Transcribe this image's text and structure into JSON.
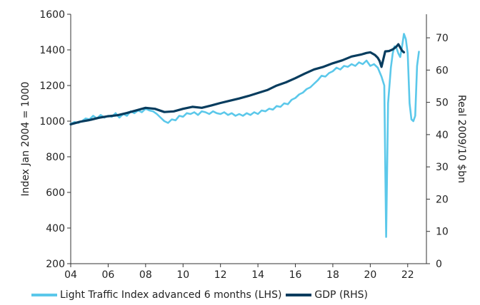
{
  "chart_data": {
    "type": "line",
    "title": "",
    "x_ticks": [
      "04",
      "06",
      "08",
      "10",
      "12",
      "14",
      "16",
      "18",
      "20",
      "22"
    ],
    "x_tick_years": [
      2004,
      2006,
      2008,
      2010,
      2012,
      2014,
      2016,
      2018,
      2020,
      2022
    ],
    "xlim": [
      2004,
      2023
    ],
    "y_left": {
      "label": "Index Jan 2004 = 1000",
      "ticks": [
        200,
        400,
        600,
        800,
        1000,
        1200,
        1400,
        1600
      ],
      "ylim": [
        200,
        1600
      ]
    },
    "y_right": {
      "label": "Real 2009/10 $bn",
      "ticks": [
        0,
        10,
        20,
        30,
        40,
        50,
        60,
        70
      ],
      "ylim": [
        0,
        77.3
      ]
    },
    "legend_position": "bottom",
    "grid": false,
    "series": [
      {
        "name": "Light Traffic Index advanced 6 months (LHS)",
        "axis": "left",
        "color": "#5bc8ea",
        "x": [
          2004.0,
          2004.2,
          2004.4,
          2004.6,
          2004.8,
          2005.0,
          2005.2,
          2005.4,
          2005.6,
          2005.8,
          2006.0,
          2006.2,
          2006.4,
          2006.6,
          2006.8,
          2007.0,
          2007.2,
          2007.4,
          2007.6,
          2007.8,
          2008.0,
          2008.2,
          2008.4,
          2008.6,
          2008.8,
          2009.0,
          2009.2,
          2009.4,
          2009.6,
          2009.8,
          2010.0,
          2010.2,
          2010.4,
          2010.6,
          2010.8,
          2011.0,
          2011.2,
          2011.4,
          2011.6,
          2011.8,
          2012.0,
          2012.2,
          2012.4,
          2012.6,
          2012.8,
          2013.0,
          2013.2,
          2013.4,
          2013.6,
          2013.8,
          2014.0,
          2014.2,
          2014.4,
          2014.6,
          2014.8,
          2015.0,
          2015.2,
          2015.4,
          2015.6,
          2015.8,
          2016.0,
          2016.2,
          2016.4,
          2016.6,
          2016.8,
          2017.0,
          2017.2,
          2017.4,
          2017.6,
          2017.8,
          2018.0,
          2018.2,
          2018.4,
          2018.6,
          2018.8,
          2019.0,
          2019.2,
          2019.4,
          2019.6,
          2019.8,
          2020.0,
          2020.2,
          2020.4,
          2020.6,
          2020.75,
          2020.85,
          2020.95,
          2021.1,
          2021.2,
          2021.3,
          2021.4,
          2021.5,
          2021.6,
          2021.7,
          2021.8,
          2021.9,
          2022.0,
          2022.1,
          2022.2,
          2022.3,
          2022.4,
          2022.5,
          2022.6
        ],
        "values": [
          985,
          995,
          990,
          1000,
          1015,
          1010,
          1030,
          1015,
          1035,
          1020,
          1030,
          1025,
          1045,
          1020,
          1040,
          1030,
          1055,
          1045,
          1060,
          1050,
          1070,
          1060,
          1055,
          1040,
          1020,
          1000,
          990,
          1010,
          1005,
          1030,
          1025,
          1045,
          1040,
          1050,
          1035,
          1055,
          1050,
          1040,
          1055,
          1045,
          1040,
          1050,
          1035,
          1045,
          1030,
          1040,
          1030,
          1045,
          1035,
          1050,
          1040,
          1060,
          1055,
          1070,
          1065,
          1085,
          1080,
          1100,
          1095,
          1120,
          1130,
          1150,
          1160,
          1180,
          1190,
          1210,
          1230,
          1255,
          1250,
          1270,
          1280,
          1300,
          1290,
          1310,
          1305,
          1320,
          1310,
          1330,
          1320,
          1340,
          1310,
          1320,
          1300,
          1250,
          1200,
          350,
          1100,
          1300,
          1380,
          1420,
          1410,
          1380,
          1360,
          1420,
          1490,
          1460,
          1380,
          1100,
          1010,
          1000,
          1030,
          1310,
          1390
        ]
      },
      {
        "name": "GDP (RHS)",
        "axis": "right",
        "color": "#073c5e",
        "x": [
          2004.0,
          2004.5,
          2005.0,
          2005.5,
          2006.0,
          2006.5,
          2007.0,
          2007.5,
          2008.0,
          2008.5,
          2009.0,
          2009.5,
          2010.0,
          2010.5,
          2011.0,
          2011.5,
          2012.0,
          2012.5,
          2013.0,
          2013.5,
          2014.0,
          2014.5,
          2015.0,
          2015.5,
          2016.0,
          2016.5,
          2017.0,
          2017.5,
          2018.0,
          2018.5,
          2019.0,
          2019.5,
          2019.8,
          2020.0,
          2020.25,
          2020.4,
          2020.5,
          2020.6,
          2020.8,
          2021.0,
          2021.2,
          2021.4,
          2021.5,
          2021.6,
          2021.7,
          2021.8
        ],
        "values": [
          43.2,
          44.0,
          44.5,
          45.2,
          45.7,
          46.0,
          46.7,
          47.5,
          48.3,
          48.0,
          47.0,
          47.2,
          48.0,
          48.6,
          48.3,
          49.0,
          49.8,
          50.5,
          51.2,
          52.0,
          52.9,
          53.8,
          55.2,
          56.2,
          57.5,
          58.9,
          60.2,
          61.0,
          62.1,
          63.0,
          64.2,
          64.8,
          65.3,
          65.5,
          64.7,
          63.8,
          62.8,
          61.0,
          65.8,
          65.9,
          66.4,
          67.3,
          68.0,
          67.0,
          66.0,
          65.5
        ]
      }
    ]
  }
}
